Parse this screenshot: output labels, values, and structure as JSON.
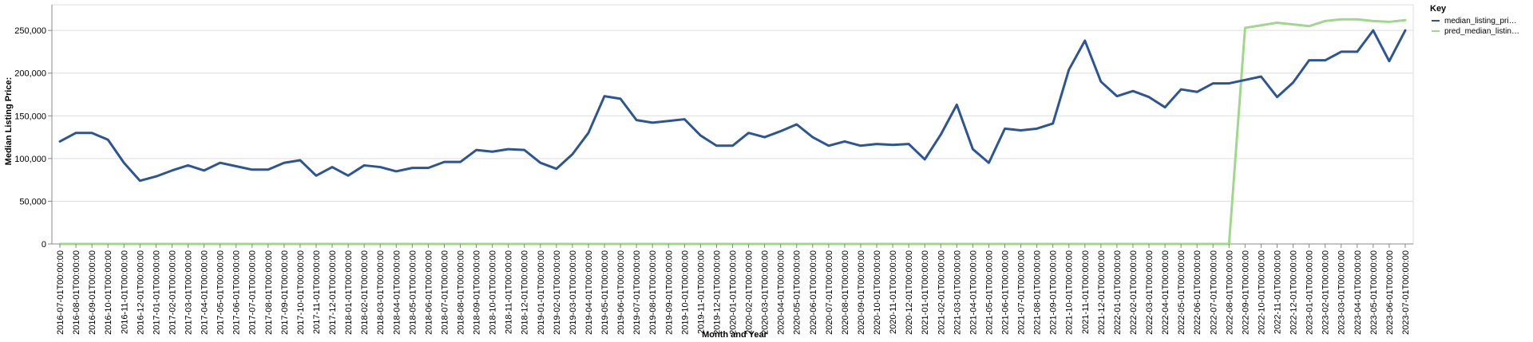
{
  "chart_data": {
    "type": "line",
    "title": "",
    "xlabel": "Month and Year",
    "ylabel": "Median Listing Price:",
    "ylim": [
      0,
      280000
    ],
    "y_ticks": [
      0,
      50000,
      100000,
      150000,
      200000,
      250000
    ],
    "y_tick_labels": [
      "0",
      "50,000",
      "100,000",
      "150,000",
      "200,000",
      "250,000"
    ],
    "grid": true,
    "legend": {
      "title": "Key",
      "placement": "right",
      "entries": [
        "median_listing_pri…",
        "pred_median_listin…"
      ]
    },
    "x": [
      "2016-07-01T00:00:00",
      "2016-08-01T00:00:00",
      "2016-09-01T00:00:00",
      "2016-10-01T00:00:00",
      "2016-11-01T00:00:00",
      "2016-12-01T00:00:00",
      "2017-01-01T00:00:00",
      "2017-02-01T00:00:00",
      "2017-03-01T00:00:00",
      "2017-04-01T00:00:00",
      "2017-05-01T00:00:00",
      "2017-06-01T00:00:00",
      "2017-07-01T00:00:00",
      "2017-08-01T00:00:00",
      "2017-09-01T00:00:00",
      "2017-10-01T00:00:00",
      "2017-11-01T00:00:00",
      "2017-12-01T00:00:00",
      "2018-01-01T00:00:00",
      "2018-02-01T00:00:00",
      "2018-03-01T00:00:00",
      "2018-04-01T00:00:00",
      "2018-05-01T00:00:00",
      "2018-06-01T00:00:00",
      "2018-07-01T00:00:00",
      "2018-08-01T00:00:00",
      "2018-09-01T00:00:00",
      "2018-10-01T00:00:00",
      "2018-11-01T00:00:00",
      "2018-12-01T00:00:00",
      "2019-01-01T00:00:00",
      "2019-02-01T00:00:00",
      "2019-03-01T00:00:00",
      "2019-04-01T00:00:00",
      "2019-05-01T00:00:00",
      "2019-06-01T00:00:00",
      "2019-07-01T00:00:00",
      "2019-08-01T00:00:00",
      "2019-09-01T00:00:00",
      "2019-10-01T00:00:00",
      "2019-11-01T00:00:00",
      "2019-12-01T00:00:00",
      "2020-01-01T00:00:00",
      "2020-02-01T00:00:00",
      "2020-03-01T00:00:00",
      "2020-04-01T00:00:00",
      "2020-05-01T00:00:00",
      "2020-06-01T00:00:00",
      "2020-07-01T00:00:00",
      "2020-08-01T00:00:00",
      "2020-09-01T00:00:00",
      "2020-10-01T00:00:00",
      "2020-11-01T00:00:00",
      "2020-12-01T00:00:00",
      "2021-01-01T00:00:00",
      "2021-02-01T00:00:00",
      "2021-03-01T00:00:00",
      "2021-04-01T00:00:00",
      "2021-05-01T00:00:00",
      "2021-06-01T00:00:00",
      "2021-07-01T00:00:00",
      "2021-08-01T00:00:00",
      "2021-09-01T00:00:00",
      "2021-10-01T00:00:00",
      "2021-11-01T00:00:00",
      "2021-12-01T00:00:00",
      "2022-01-01T00:00:00",
      "2022-02-01T00:00:00",
      "2022-03-01T00:00:00",
      "2022-04-01T00:00:00",
      "2022-05-01T00:00:00",
      "2022-06-01T00:00:00",
      "2022-07-01T00:00:00",
      "2022-08-01T00:00:00",
      "2022-09-01T00:00:00",
      "2022-10-01T00:00:00",
      "2022-11-01T00:00:00",
      "2022-12-01T00:00:00",
      "2023-01-01T00:00:00",
      "2023-02-01T00:00:00",
      "2023-03-01T00:00:00",
      "2023-04-01T00:00:00",
      "2023-05-01T00:00:00",
      "2023-06-01T00:00:00",
      "2023-07-01T00:00:00"
    ],
    "series": [
      {
        "name": "median_listing_pri…",
        "color": "#2c5596",
        "values": [
          120000,
          130000,
          130000,
          122000,
          95000,
          74000,
          79000,
          86000,
          92000,
          86000,
          95000,
          91000,
          87000,
          87000,
          95000,
          98000,
          80000,
          90000,
          80000,
          92000,
          90000,
          85000,
          89000,
          89000,
          96000,
          96000,
          110000,
          108000,
          111000,
          110000,
          95000,
          88000,
          105000,
          130000,
          173000,
          170000,
          145000,
          142000,
          144000,
          146000,
          127000,
          115000,
          115000,
          130000,
          125000,
          132000,
          140000,
          125000,
          115000,
          120000,
          115000,
          117000,
          116000,
          117000,
          99000,
          128000,
          163000,
          111000,
          95000,
          135000,
          133000,
          135000,
          141000,
          204000,
          238000,
          190000,
          173000,
          179000,
          172000,
          160000,
          181000,
          178000,
          188000,
          188000,
          192000,
          196000,
          172000,
          189000,
          215000,
          215000,
          225000,
          225000,
          250000,
          214000,
          250000
        ]
      },
      {
        "name": "pred_median_listin…",
        "color": "#9fd88a",
        "values": [
          0,
          0,
          0,
          0,
          0,
          0,
          0,
          0,
          0,
          0,
          0,
          0,
          0,
          0,
          0,
          0,
          0,
          0,
          0,
          0,
          0,
          0,
          0,
          0,
          0,
          0,
          0,
          0,
          0,
          0,
          0,
          0,
          0,
          0,
          0,
          0,
          0,
          0,
          0,
          0,
          0,
          0,
          0,
          0,
          0,
          0,
          0,
          0,
          0,
          0,
          0,
          0,
          0,
          0,
          0,
          0,
          0,
          0,
          0,
          0,
          0,
          0,
          0,
          0,
          0,
          0,
          0,
          0,
          0,
          0,
          0,
          0,
          0,
          0,
          253000,
          256000,
          259000,
          257000,
          255000,
          261000,
          263000,
          263000,
          261000,
          260000,
          262000
        ]
      }
    ]
  }
}
